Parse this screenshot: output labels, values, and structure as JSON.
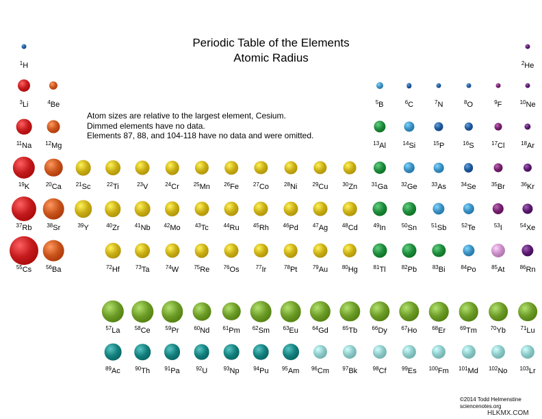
{
  "title": "Periodic Table of the Elements",
  "subtitle": "Atomic Radius",
  "notes": [
    "Atom sizes are relative to the largest element, Cesium.",
    "Dimmed elements have no data.",
    "Elements 87, 88, and 104-118 have no data and were omitted."
  ],
  "credit": [
    "©2014 Todd Helmenstine",
    "sciencenotes.org"
  ],
  "watermark": "HLKMX.COM",
  "colors": {
    "alkali": "#c41a1c",
    "alkaline_earth": "#c8531a",
    "transition": "#c9ad14",
    "post_transition": "#1d8a3b",
    "metalloid": "#3b8fc0",
    "nonmetal": "#1f5a9a",
    "halogen": "#75206e",
    "noble_gas": "#5a1a70",
    "lanthanide": "#6d9b27",
    "actinide": "#13807e",
    "actinide_no_data": "#8ac8c6",
    "halogen_no_data": "#c68cc4"
  },
  "elements": [
    {
      "z": "1",
      "sym": "H",
      "col": 1,
      "row": 1,
      "r": 0.12,
      "cat": "nonmetal"
    },
    {
      "z": "2",
      "sym": "He",
      "col": 18,
      "row": 1,
      "r": 0.07,
      "cat": "noble_gas"
    },
    {
      "z": "3",
      "sym": "Li",
      "col": 1,
      "row": 2,
      "r": 0.43,
      "cat": "alkali"
    },
    {
      "z": "4",
      "sym": "Be",
      "col": 2,
      "row": 2,
      "r": 0.29,
      "cat": "alkaline_earth"
    },
    {
      "z": "5",
      "sym": "B",
      "col": 13,
      "row": 2,
      "r": 0.24,
      "cat": "metalloid"
    },
    {
      "z": "6",
      "sym": "C",
      "col": 14,
      "row": 2,
      "r": 0.18,
      "cat": "nonmetal"
    },
    {
      "z": "7",
      "sym": "N",
      "col": 15,
      "row": 2,
      "r": 0.16,
      "cat": "nonmetal"
    },
    {
      "z": "8",
      "sym": "O",
      "col": 16,
      "row": 2,
      "r": 0.14,
      "cat": "nonmetal"
    },
    {
      "z": "9",
      "sym": "F",
      "col": 17,
      "row": 2,
      "r": 0.12,
      "cat": "halogen"
    },
    {
      "z": "10",
      "sym": "Ne",
      "col": 18,
      "row": 2,
      "r": 0.1,
      "cat": "noble_gas"
    },
    {
      "z": "11",
      "sym": "Na",
      "col": 1,
      "row": 3,
      "r": 0.54,
      "cat": "alkali"
    },
    {
      "z": "12",
      "sym": "Mg",
      "col": 2,
      "row": 3,
      "r": 0.45,
      "cat": "alkaline_earth"
    },
    {
      "z": "13",
      "sym": "Al",
      "col": 13,
      "row": 3,
      "r": 0.41,
      "cat": "post_transition"
    },
    {
      "z": "14",
      "sym": "Si",
      "col": 14,
      "row": 3,
      "r": 0.36,
      "cat": "metalloid"
    },
    {
      "z": "15",
      "sym": "P",
      "col": 15,
      "row": 3,
      "r": 0.31,
      "cat": "nonmetal"
    },
    {
      "z": "16",
      "sym": "S",
      "col": 16,
      "row": 3,
      "r": 0.29,
      "cat": "nonmetal"
    },
    {
      "z": "17",
      "sym": "Cl",
      "col": 17,
      "row": 3,
      "r": 0.26,
      "cat": "halogen"
    },
    {
      "z": "18",
      "sym": "Ar",
      "col": 18,
      "row": 3,
      "r": 0.22,
      "cat": "noble_gas"
    },
    {
      "z": "19",
      "sym": "K",
      "col": 1,
      "row": 4,
      "r": 0.77,
      "cat": "alkali"
    },
    {
      "z": "20",
      "sym": "Ca",
      "col": 2,
      "row": 4,
      "r": 0.63,
      "cat": "alkaline_earth"
    },
    {
      "z": "21",
      "sym": "Sc",
      "col": 3,
      "row": 4,
      "r": 0.54,
      "cat": "transition"
    },
    {
      "z": "22",
      "sym": "Ti",
      "col": 4,
      "row": 4,
      "r": 0.52,
      "cat": "transition"
    },
    {
      "z": "23",
      "sym": "V",
      "col": 5,
      "row": 4,
      "r": 0.5,
      "cat": "transition"
    },
    {
      "z": "24",
      "sym": "Cr",
      "col": 6,
      "row": 4,
      "r": 0.49,
      "cat": "transition"
    },
    {
      "z": "25",
      "sym": "Mn",
      "col": 7,
      "row": 4,
      "r": 0.48,
      "cat": "transition"
    },
    {
      "z": "26",
      "sym": "Fe",
      "col": 8,
      "row": 4,
      "r": 0.47,
      "cat": "transition"
    },
    {
      "z": "27",
      "sym": "Co",
      "col": 9,
      "row": 4,
      "r": 0.46,
      "cat": "transition"
    },
    {
      "z": "28",
      "sym": "Ni",
      "col": 10,
      "row": 4,
      "r": 0.45,
      "cat": "transition"
    },
    {
      "z": "29",
      "sym": "Cu",
      "col": 11,
      "row": 4,
      "r": 0.46,
      "cat": "transition"
    },
    {
      "z": "30",
      "sym": "Zn",
      "col": 12,
      "row": 4,
      "r": 0.45,
      "cat": "transition"
    },
    {
      "z": "31",
      "sym": "Ga",
      "col": 13,
      "row": 4,
      "r": 0.43,
      "cat": "post_transition"
    },
    {
      "z": "32",
      "sym": "Ge",
      "col": 14,
      "row": 4,
      "r": 0.39,
      "cat": "metalloid"
    },
    {
      "z": "33",
      "sym": "As",
      "col": 15,
      "row": 4,
      "r": 0.35,
      "cat": "metalloid"
    },
    {
      "z": "34",
      "sym": "Se",
      "col": 16,
      "row": 4,
      "r": 0.33,
      "cat": "nonmetal"
    },
    {
      "z": "35",
      "sym": "Br",
      "col": 17,
      "row": 4,
      "r": 0.31,
      "cat": "halogen"
    },
    {
      "z": "36",
      "sym": "Kr",
      "col": 18,
      "row": 4,
      "r": 0.29,
      "cat": "noble_gas"
    },
    {
      "z": "37",
      "sym": "Rb",
      "col": 1,
      "row": 5,
      "r": 0.86,
      "cat": "alkali"
    },
    {
      "z": "38",
      "sym": "Sr",
      "col": 2,
      "row": 5,
      "r": 0.73,
      "cat": "alkaline_earth"
    },
    {
      "z": "39",
      "sym": "Y",
      "col": 3,
      "row": 5,
      "r": 0.61,
      "cat": "transition"
    },
    {
      "z": "40",
      "sym": "Zr",
      "col": 4,
      "row": 5,
      "r": 0.56,
      "cat": "transition"
    },
    {
      "z": "41",
      "sym": "Nb",
      "col": 5,
      "row": 5,
      "r": 0.54,
      "cat": "transition"
    },
    {
      "z": "42",
      "sym": "Mo",
      "col": 6,
      "row": 5,
      "r": 0.52,
      "cat": "transition"
    },
    {
      "z": "43",
      "sym": "Tc",
      "col": 7,
      "row": 5,
      "r": 0.5,
      "cat": "transition"
    },
    {
      "z": "44",
      "sym": "Ru",
      "col": 8,
      "row": 5,
      "r": 0.5,
      "cat": "transition"
    },
    {
      "z": "45",
      "sym": "Rh",
      "col": 9,
      "row": 5,
      "r": 0.5,
      "cat": "transition"
    },
    {
      "z": "46",
      "sym": "Pd",
      "col": 10,
      "row": 5,
      "r": 0.5,
      "cat": "transition"
    },
    {
      "z": "47",
      "sym": "Ag",
      "col": 11,
      "row": 5,
      "r": 0.5,
      "cat": "transition"
    },
    {
      "z": "48",
      "sym": "Cd",
      "col": 12,
      "row": 5,
      "r": 0.49,
      "cat": "transition"
    },
    {
      "z": "49",
      "sym": "In",
      "col": 13,
      "row": 5,
      "r": 0.5,
      "cat": "post_transition"
    },
    {
      "z": "50",
      "sym": "Sn",
      "col": 14,
      "row": 5,
      "r": 0.47,
      "cat": "post_transition"
    },
    {
      "z": "51",
      "sym": "Sb",
      "col": 15,
      "row": 5,
      "r": 0.41,
      "cat": "metalloid"
    },
    {
      "z": "52",
      "sym": "Te",
      "col": 16,
      "row": 5,
      "r": 0.39,
      "cat": "metalloid"
    },
    {
      "z": "53",
      "sym": "I",
      "col": 17,
      "row": 5,
      "r": 0.39,
      "cat": "halogen"
    },
    {
      "z": "54",
      "sym": "Xe",
      "col": 18,
      "row": 5,
      "r": 0.36,
      "cat": "noble_gas"
    },
    {
      "z": "55",
      "sym": "Cs",
      "col": 1,
      "row": 6,
      "r": 1.0,
      "cat": "alkali"
    },
    {
      "z": "56",
      "sym": "Ba",
      "col": 2,
      "row": 6,
      "r": 0.73,
      "cat": "alkaline_earth"
    },
    {
      "z": "72",
      "sym": "Hf",
      "col": 4,
      "row": 6,
      "r": 0.54,
      "cat": "transition"
    },
    {
      "z": "73",
      "sym": "Ta",
      "col": 5,
      "row": 6,
      "r": 0.52,
      "cat": "transition"
    },
    {
      "z": "74",
      "sym": "W",
      "col": 6,
      "row": 6,
      "r": 0.5,
      "cat": "transition"
    },
    {
      "z": "75",
      "sym": "Re",
      "col": 7,
      "row": 6,
      "r": 0.49,
      "cat": "transition"
    },
    {
      "z": "76",
      "sym": "Os",
      "col": 8,
      "row": 6,
      "r": 0.5,
      "cat": "transition"
    },
    {
      "z": "77",
      "sym": "Ir",
      "col": 9,
      "row": 6,
      "r": 0.48,
      "cat": "transition"
    },
    {
      "z": "78",
      "sym": "Pt",
      "col": 10,
      "row": 6,
      "r": 0.49,
      "cat": "transition"
    },
    {
      "z": "79",
      "sym": "Au",
      "col": 11,
      "row": 6,
      "r": 0.5,
      "cat": "transition"
    },
    {
      "z": "80",
      "sym": "Hg",
      "col": 12,
      "row": 6,
      "r": 0.48,
      "cat": "transition"
    },
    {
      "z": "81",
      "sym": "Tl",
      "col": 13,
      "row": 6,
      "r": 0.5,
      "cat": "post_transition"
    },
    {
      "z": "82",
      "sym": "Pb",
      "col": 14,
      "row": 6,
      "r": 0.5,
      "cat": "post_transition"
    },
    {
      "z": "83",
      "sym": "Bi",
      "col": 15,
      "row": 6,
      "r": 0.46,
      "cat": "post_transition"
    },
    {
      "z": "84",
      "sym": "Po",
      "col": 16,
      "row": 6,
      "r": 0.41,
      "cat": "metalloid"
    },
    {
      "z": "85",
      "sym": "At",
      "col": 17,
      "row": 6,
      "r": 0.48,
      "cat": "halogen_no_data"
    },
    {
      "z": "86",
      "sym": "Rn",
      "col": 18,
      "row": 6,
      "r": 0.41,
      "cat": "noble_gas"
    },
    {
      "z": "57",
      "sym": "La",
      "col": 4,
      "row": 8,
      "r": 0.77,
      "cat": "lanthanide"
    },
    {
      "z": "58",
      "sym": "Ce",
      "col": 5,
      "row": 8,
      "r": 0.75,
      "cat": "lanthanide"
    },
    {
      "z": "59",
      "sym": "Pr",
      "col": 6,
      "row": 8,
      "r": 0.75,
      "cat": "lanthanide"
    },
    {
      "z": "60",
      "sym": "Nd",
      "col": 7,
      "row": 8,
      "r": 0.64,
      "cat": "lanthanide"
    },
    {
      "z": "61",
      "sym": "Pm",
      "col": 8,
      "row": 8,
      "r": 0.63,
      "cat": "lanthanide"
    },
    {
      "z": "62",
      "sym": "Sm",
      "col": 9,
      "row": 8,
      "r": 0.73,
      "cat": "lanthanide"
    },
    {
      "z": "63",
      "sym": "Eu",
      "col": 10,
      "row": 8,
      "r": 0.73,
      "cat": "lanthanide"
    },
    {
      "z": "64",
      "sym": "Gd",
      "col": 11,
      "row": 8,
      "r": 0.72,
      "cat": "lanthanide"
    },
    {
      "z": "65",
      "sym": "Tb",
      "col": 12,
      "row": 8,
      "r": 0.7,
      "cat": "lanthanide"
    },
    {
      "z": "66",
      "sym": "Dy",
      "col": 13,
      "row": 8,
      "r": 0.7,
      "cat": "lanthanide"
    },
    {
      "z": "67",
      "sym": "Ho",
      "col": 14,
      "row": 8,
      "r": 0.7,
      "cat": "lanthanide"
    },
    {
      "z": "68",
      "sym": "Er",
      "col": 15,
      "row": 8,
      "r": 0.68,
      "cat": "lanthanide"
    },
    {
      "z": "69",
      "sym": "Tm",
      "col": 16,
      "row": 8,
      "r": 0.68,
      "cat": "lanthanide"
    },
    {
      "z": "70",
      "sym": "Yb",
      "col": 17,
      "row": 8,
      "r": 0.66,
      "cat": "lanthanide"
    },
    {
      "z": "71",
      "sym": "Lu",
      "col": 18,
      "row": 8,
      "r": 0.66,
      "cat": "lanthanide"
    },
    {
      "z": "89",
      "sym": "Ac",
      "col": 4,
      "row": 9,
      "r": 0.59,
      "cat": "actinide"
    },
    {
      "z": "90",
      "sym": "Th",
      "col": 5,
      "row": 9,
      "r": 0.56,
      "cat": "actinide"
    },
    {
      "z": "91",
      "sym": "Pa",
      "col": 6,
      "row": 9,
      "r": 0.57,
      "cat": "actinide"
    },
    {
      "z": "92",
      "sym": "U",
      "col": 7,
      "row": 9,
      "r": 0.54,
      "cat": "actinide"
    },
    {
      "z": "93",
      "sym": "Np",
      "col": 8,
      "row": 9,
      "r": 0.54,
      "cat": "actinide"
    },
    {
      "z": "94",
      "sym": "Pu",
      "col": 9,
      "row": 9,
      "r": 0.54,
      "cat": "actinide"
    },
    {
      "z": "95",
      "sym": "Am",
      "col": 10,
      "row": 9,
      "r": 0.57,
      "cat": "actinide"
    },
    {
      "z": "96",
      "sym": "Cm",
      "col": 11,
      "row": 9,
      "r": 0.48,
      "cat": "actinide_no_data"
    },
    {
      "z": "97",
      "sym": "Bk",
      "col": 12,
      "row": 9,
      "r": 0.48,
      "cat": "actinide_no_data"
    },
    {
      "z": "98",
      "sym": "Cf",
      "col": 13,
      "row": 9,
      "r": 0.48,
      "cat": "actinide_no_data"
    },
    {
      "z": "99",
      "sym": "Es",
      "col": 14,
      "row": 9,
      "r": 0.48,
      "cat": "actinide_no_data"
    },
    {
      "z": "100",
      "sym": "Fm",
      "col": 15,
      "row": 9,
      "r": 0.48,
      "cat": "actinide_no_data"
    },
    {
      "z": "101",
      "sym": "Md",
      "col": 16,
      "row": 9,
      "r": 0.48,
      "cat": "actinide_no_data"
    },
    {
      "z": "102",
      "sym": "No",
      "col": 17,
      "row": 9,
      "r": 0.48,
      "cat": "actinide_no_data"
    },
    {
      "z": "103",
      "sym": "Lr",
      "col": 18,
      "row": 9,
      "r": 0.48,
      "cat": "actinide_no_data"
    }
  ]
}
